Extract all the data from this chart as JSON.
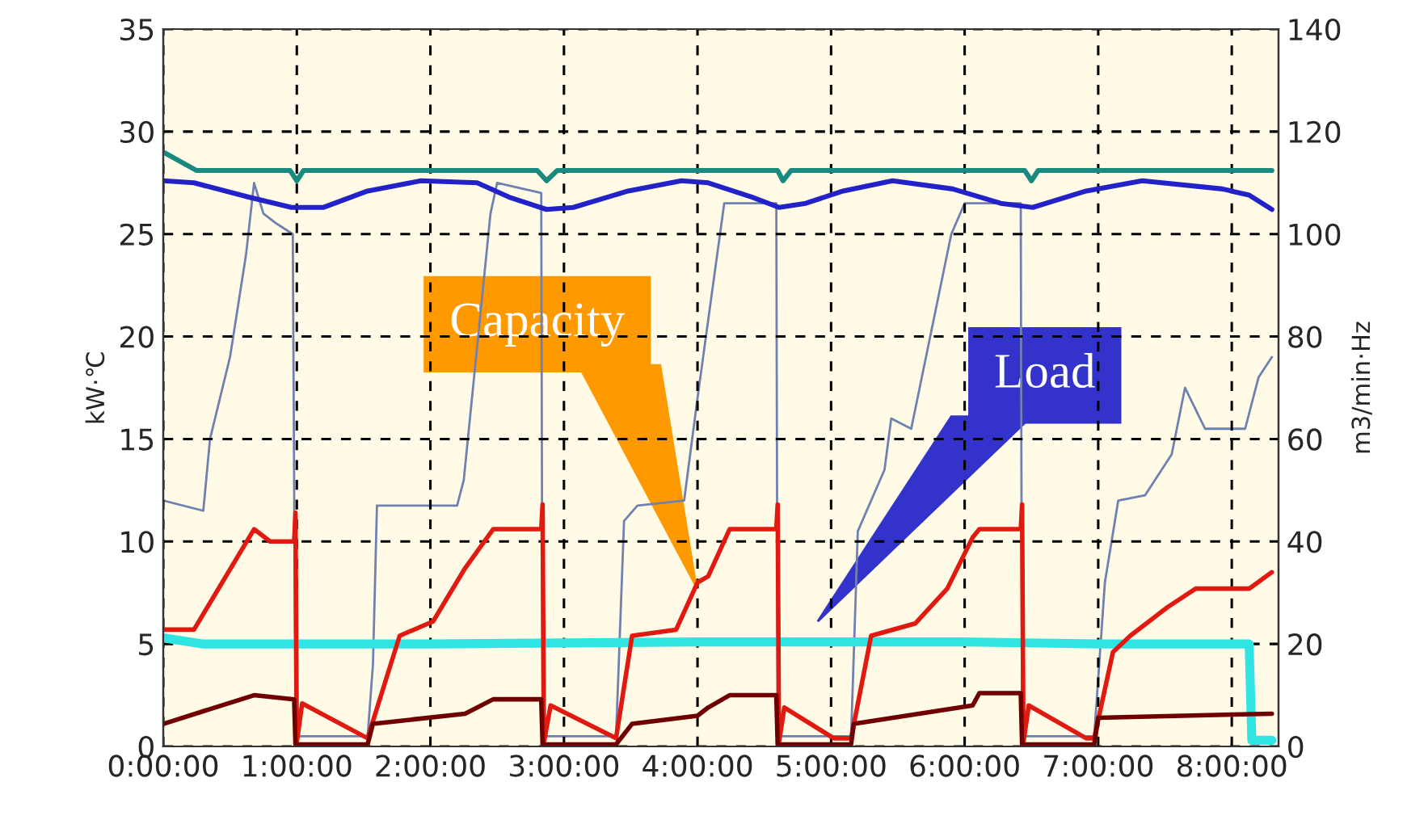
{
  "chart_data": {
    "type": "line",
    "xlabel": null,
    "ylabel": "kW·℃",
    "y2label": "m3/min·Hz",
    "xlim": [
      0,
      8.35
    ],
    "xticks": [
      {
        "value": 0,
        "label": "0:00:00"
      },
      {
        "value": 1,
        "label": "1:00:00"
      },
      {
        "value": 2,
        "label": "2:00:00"
      },
      {
        "value": 3,
        "label": "3:00:00"
      },
      {
        "value": 4,
        "label": "4:00:00"
      },
      {
        "value": 5,
        "label": "5:00:00"
      },
      {
        "value": 6,
        "label": "6:00:00"
      },
      {
        "value": 7,
        "label": "7:00:00"
      },
      {
        "value": 8,
        "label": "8:00:00"
      }
    ],
    "ylim": [
      0,
      35
    ],
    "yticks": [
      0,
      5,
      10,
      15,
      20,
      25,
      30,
      35
    ],
    "y2lim": [
      0,
      140
    ],
    "y2ticks": [
      0,
      20,
      40,
      60,
      80,
      100,
      120,
      140
    ],
    "grid": true,
    "line_style": "solid",
    "marker": "none",
    "series": [
      {
        "color": "#7080b0",
        "axis": "y2",
        "x": [
          0.0,
          0.3,
          0.35,
          0.5,
          0.62,
          0.68,
          0.75,
          0.85,
          0.97,
          0.99,
          1.53,
          1.57,
          1.6,
          2.2,
          2.25,
          2.45,
          2.5,
          2.83,
          2.84,
          3.39,
          3.45,
          3.55,
          3.9,
          4.0,
          4.2,
          4.59,
          4.6,
          5.15,
          5.2,
          5.4,
          5.45,
          5.6,
          5.9,
          6.0,
          6.42,
          6.43,
          6.97,
          7.05,
          7.15,
          7.35,
          7.55,
          7.65,
          7.8,
          8.1,
          8.2,
          8.3
        ],
        "values": [
          48,
          46,
          60,
          76,
          96,
          110,
          104,
          102,
          100,
          2,
          2,
          16,
          47,
          47,
          52,
          104,
          110,
          108,
          2,
          2,
          44,
          47,
          48,
          68,
          106,
          106,
          2,
          2,
          42,
          54,
          64,
          62,
          100,
          106,
          106,
          2,
          2,
          32,
          48,
          49,
          57,
          70,
          62,
          62,
          72,
          76
        ]
      },
      {
        "color": "#1a8a80",
        "x": [
          0,
          0.25,
          0.95,
          1.0,
          1.05,
          2.8,
          2.87,
          2.95,
          4.6,
          4.64,
          4.7,
          6.45,
          6.5,
          6.55,
          8.3
        ],
        "values": [
          29.0,
          28.1,
          28.1,
          27.6,
          28.1,
          28.1,
          27.6,
          28.1,
          28.1,
          27.6,
          28.1,
          28.1,
          27.6,
          28.1,
          28.1
        ]
      },
      {
        "color": "#2222c8",
        "x": [
          0,
          0.23,
          0.64,
          0.96,
          1.2,
          1.53,
          1.93,
          2.35,
          2.59,
          2.87,
          3.07,
          3.48,
          3.88,
          4.08,
          4.41,
          4.61,
          4.81,
          5.09,
          5.46,
          5.91,
          6.27,
          6.51,
          6.91,
          7.33,
          7.93,
          8.13,
          8.3
        ],
        "values": [
          27.6,
          27.5,
          26.8,
          26.3,
          26.3,
          27.1,
          27.6,
          27.5,
          26.8,
          26.2,
          26.3,
          27.1,
          27.6,
          27.5,
          26.8,
          26.3,
          26.5,
          27.1,
          27.6,
          27.2,
          26.5,
          26.3,
          27.1,
          27.6,
          27.2,
          26.9,
          26.2
        ]
      },
      {
        "color": "#30e4e4",
        "x": [
          0,
          0.3,
          2,
          4,
          6,
          7,
          8.13,
          8.15,
          8.3
        ],
        "values": [
          5.3,
          5.0,
          5.0,
          5.1,
          5.1,
          5.0,
          5.0,
          0.3,
          0.3
        ]
      },
      {
        "color": "#e01a10",
        "x": [
          0.0,
          0.23,
          0.68,
          0.8,
          0.98,
          0.99,
          1.0,
          1.04,
          1.53,
          1.77,
          2.02,
          2.26,
          2.47,
          2.83,
          2.84,
          2.85,
          2.9,
          3.39,
          3.51,
          3.84,
          4.0,
          4.08,
          4.24,
          4.59,
          4.6,
          4.61,
          4.65,
          5.02,
          5.15,
          5.3,
          5.63,
          5.87,
          6.06,
          6.11,
          6.42,
          6.43,
          6.44,
          6.48,
          6.91,
          6.97,
          7.11,
          7.24,
          7.52,
          7.73,
          8.13,
          8.3
        ],
        "values": [
          5.7,
          5.7,
          10.6,
          10.0,
          10.0,
          11.4,
          0.2,
          2.1,
          0.4,
          5.4,
          6.1,
          8.7,
          10.6,
          10.6,
          11.8,
          0.2,
          2.0,
          0.4,
          5.4,
          5.7,
          8.0,
          8.3,
          10.6,
          10.6,
          11.8,
          0.2,
          1.9,
          0.4,
          0.4,
          5.4,
          6.0,
          7.7,
          10.2,
          10.6,
          10.6,
          11.8,
          0.2,
          2.0,
          0.4,
          0.4,
          4.6,
          5.4,
          6.8,
          7.7,
          7.7,
          8.5
        ]
      },
      {
        "color": "#700000",
        "x": [
          0,
          0.68,
          0.98,
          0.99,
          1.53,
          1.57,
          2.26,
          2.47,
          2.83,
          2.84,
          3.39,
          3.51,
          4.0,
          4.08,
          4.24,
          4.59,
          4.6,
          5.15,
          5.17,
          6.06,
          6.11,
          6.42,
          6.43,
          6.97,
          7.0,
          8.3
        ],
        "values": [
          1.1,
          2.5,
          2.3,
          0.1,
          0.1,
          1.1,
          1.6,
          2.3,
          2.3,
          0.1,
          0.1,
          1.1,
          1.5,
          1.9,
          2.5,
          2.5,
          0.1,
          0.1,
          1.1,
          2.0,
          2.6,
          2.6,
          0.1,
          0.1,
          1.4,
          1.6
        ]
      }
    ],
    "annotations": [
      "Capacity",
      "Load"
    ]
  }
}
